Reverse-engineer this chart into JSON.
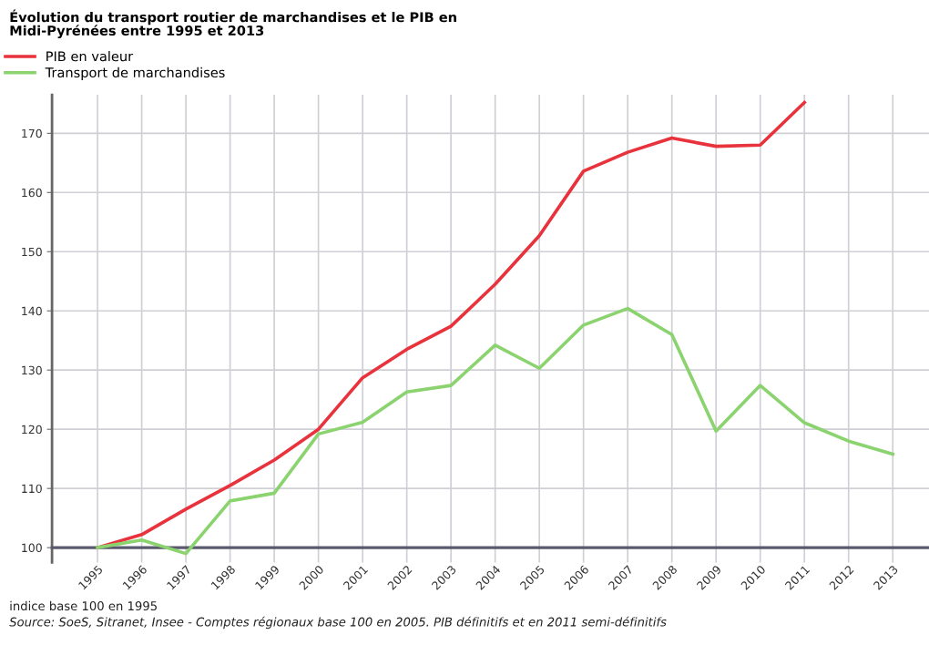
{
  "chart_data": {
    "type": "line",
    "title": "Évolution du transport routier de marchandises et le PIB en\nMidi-Pyrénées entre 1995 et 2013",
    "categories": [
      "1995",
      "1996",
      "1997",
      "1998",
      "1999",
      "2000",
      "2001",
      "2002",
      "2003",
      "2004",
      "2005",
      "2006",
      "2007",
      "2008",
      "2009",
      "2010",
      "2011",
      "2012",
      "2013"
    ],
    "series": [
      {
        "name": "PIB en valeur",
        "color": "#e8323c",
        "values": [
          100,
          102.2,
          106.5,
          110.5,
          114.8,
          120,
          128.7,
          133.5,
          137.4,
          144.5,
          152.7,
          163.6,
          166.8,
          169.2,
          167.8,
          168,
          175.2,
          null,
          null
        ]
      },
      {
        "name": "Transport de marchandises",
        "color": "#8ad36e",
        "values": [
          100,
          101.3,
          99,
          107.9,
          109.2,
          119.2,
          121.2,
          126.3,
          127.4,
          134.2,
          130.3,
          137.6,
          140.4,
          136,
          119.7,
          127.4,
          121.1,
          118,
          115.8
        ]
      }
    ],
    "ylim": [
      97.5,
      176.5
    ],
    "yticks": [
      100,
      110,
      120,
      130,
      140,
      150,
      160,
      170
    ],
    "grid": true,
    "legend": "top left",
    "marker": "none",
    "line_style": "solid",
    "annotations": [
      "indice base 100 en 1995",
      "Source: SoeS, Sitranet, Insee - Comptes régionaux base 100 en 2005. PIB définitifs et en 2011 semi-définitifs"
    ]
  }
}
